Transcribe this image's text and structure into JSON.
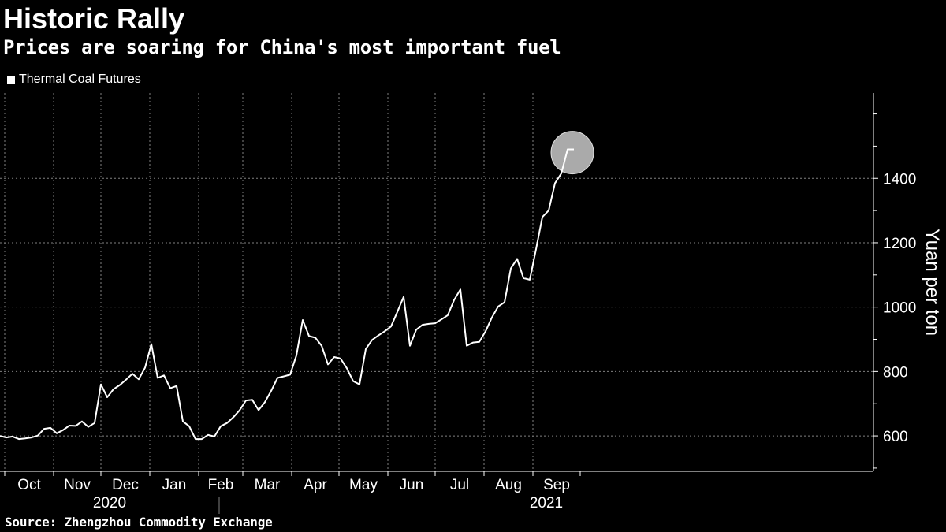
{
  "title": "Historic Rally",
  "subtitle": "Prices are soaring for China's most important fuel",
  "source": "Source: Zhengzhou Commodity Exchange",
  "chart_data": {
    "type": "line",
    "title": "Historic Rally",
    "subtitle": "Prices are soaring for China's most important fuel",
    "ylabel": "Yuan per ton",
    "xlabel": "",
    "ylim": [
      490,
      1665
    ],
    "yticks": [
      600,
      800,
      1000,
      1200,
      1400
    ],
    "grid": true,
    "legend_position": "top-left",
    "colors": {
      "background": "#000000",
      "line": "#ffffff",
      "grid": "#808080",
      "highlight": "#c8c8c8"
    },
    "month_labels": [
      "Oct",
      "Nov",
      "Dec",
      "Jan",
      "Feb",
      "Mar",
      "Apr",
      "May",
      "Jun",
      "Jul",
      "Aug",
      "Sep"
    ],
    "year_labels": [
      "2020",
      "2021"
    ],
    "series": [
      {
        "name": "Thermal Coal Futures",
        "x": [
          "2020-09-28",
          "2020-10-02",
          "2020-10-06",
          "2020-10-10",
          "2020-10-14",
          "2020-10-18",
          "2020-10-22",
          "2020-10-26",
          "2020-10-30",
          "2020-11-03",
          "2020-11-07",
          "2020-11-11",
          "2020-11-15",
          "2020-11-19",
          "2020-11-23",
          "2020-11-27",
          "2020-12-01",
          "2020-12-05",
          "2020-12-09",
          "2020-12-13",
          "2020-12-17",
          "2020-12-21",
          "2020-12-25",
          "2020-12-29",
          "2021-01-02",
          "2021-01-06",
          "2021-01-10",
          "2021-01-14",
          "2021-01-18",
          "2021-01-22",
          "2021-01-26",
          "2021-01-30",
          "2021-02-03",
          "2021-02-07",
          "2021-02-11",
          "2021-02-15",
          "2021-02-19",
          "2021-02-23",
          "2021-02-27",
          "2021-03-03",
          "2021-03-07",
          "2021-03-11",
          "2021-03-15",
          "2021-03-19",
          "2021-03-23",
          "2021-03-27",
          "2021-03-31",
          "2021-04-04",
          "2021-04-08",
          "2021-04-12",
          "2021-04-16",
          "2021-04-20",
          "2021-04-24",
          "2021-04-28",
          "2021-05-02",
          "2021-05-06",
          "2021-05-10",
          "2021-05-14",
          "2021-05-18",
          "2021-05-22",
          "2021-05-26",
          "2021-05-30",
          "2021-06-03",
          "2021-06-07",
          "2021-06-11",
          "2021-06-15",
          "2021-06-19",
          "2021-06-23",
          "2021-06-27",
          "2021-07-01",
          "2021-07-05",
          "2021-07-09",
          "2021-07-13",
          "2021-07-17",
          "2021-07-21",
          "2021-07-25",
          "2021-07-29",
          "2021-08-02",
          "2021-08-06",
          "2021-08-10",
          "2021-08-14",
          "2021-08-18",
          "2021-08-22",
          "2021-08-26",
          "2021-08-30",
          "2021-09-03",
          "2021-09-07",
          "2021-09-11",
          "2021-09-15",
          "2021-09-19",
          "2021-09-23",
          "2021-09-27"
        ],
        "values": [
          600,
          595,
          598,
          590,
          592,
          595,
          601,
          622,
          625,
          608,
          618,
          632,
          631,
          645,
          628,
          640,
          760,
          720,
          745,
          758,
          775,
          793,
          776,
          812,
          885,
          780,
          788,
          748,
          755,
          645,
          630,
          590,
          590,
          603,
          598,
          630,
          640,
          658,
          680,
          710,
          712,
          680,
          705,
          740,
          780,
          785,
          790,
          850,
          960,
          910,
          905,
          880,
          822,
          845,
          840,
          810,
          770,
          760,
          870,
          898,
          912,
          925,
          940,
          985,
          1032,
          880,
          930,
          945,
          948,
          950,
          962,
          975,
          1022,
          1055,
          880,
          890,
          892,
          925,
          968,
          1002,
          1015,
          1120,
          1150,
          1090,
          1085,
          1180,
          1280,
          1300,
          1385,
          1415,
          1490,
          1490
        ]
      }
    ],
    "highlight": {
      "x": "2021-09-26",
      "y": 1480
    }
  }
}
